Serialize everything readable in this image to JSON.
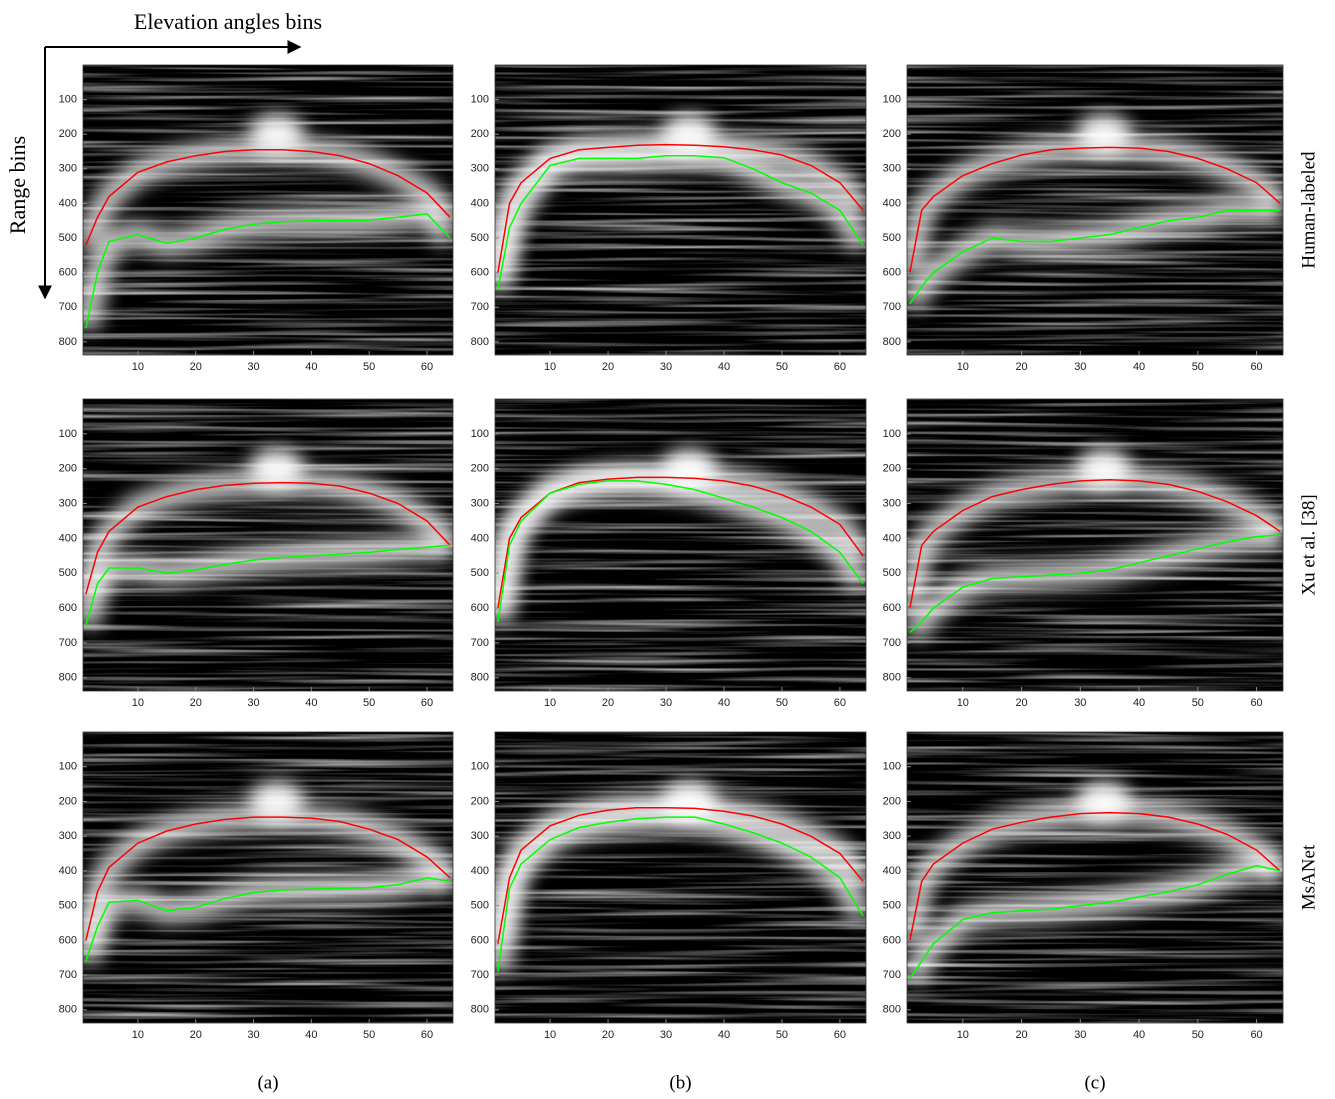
{
  "figure": {
    "x_arrow_label": "Elevation angles bins",
    "y_arrow_label": "Range bins",
    "row_labels": [
      "Human-labeled",
      "Xu et al. [38]",
      "MsANet"
    ],
    "column_labels": [
      "(a)",
      "(b)",
      "(c)"
    ]
  },
  "chart_data": [
    {
      "type": "line",
      "x": [
        1,
        3,
        5,
        10,
        15,
        20,
        25,
        30,
        35,
        40,
        45,
        50,
        55,
        60,
        64
      ],
      "xlim": [
        0.5,
        64.5
      ],
      "ylim": [
        838,
        0
      ],
      "xticks": [
        10,
        20,
        30,
        40,
        50,
        60
      ],
      "yticks": [
        100,
        200,
        300,
        400,
        500,
        600,
        700,
        800
      ],
      "series": [
        {
          "color": "#ff0000",
          "values": [
            520,
            440,
            380,
            310,
            280,
            262,
            250,
            245,
            245,
            250,
            262,
            285,
            320,
            370,
            440
          ]
        },
        {
          "color": "#00ff00",
          "values": [
            760,
            600,
            510,
            490,
            515,
            500,
            475,
            460,
            453,
            450,
            450,
            448,
            440,
            430,
            500
          ]
        }
      ]
    },
    {
      "type": "line",
      "x": [
        1,
        3,
        5,
        10,
        15,
        20,
        25,
        30,
        35,
        40,
        45,
        50,
        55,
        60,
        64
      ],
      "xlim": [
        0.5,
        64.5
      ],
      "ylim": [
        838,
        0
      ],
      "xticks": [
        10,
        20,
        30,
        40,
        50,
        60
      ],
      "yticks": [
        100,
        200,
        300,
        400,
        500,
        600,
        700,
        800
      ],
      "series": [
        {
          "color": "#ff0000",
          "values": [
            600,
            400,
            340,
            270,
            245,
            238,
            232,
            230,
            232,
            236,
            245,
            260,
            290,
            340,
            420
          ]
        },
        {
          "color": "#00ff00",
          "values": [
            650,
            470,
            400,
            290,
            270,
            270,
            270,
            262,
            262,
            268,
            300,
            340,
            370,
            420,
            520
          ]
        }
      ]
    },
    {
      "type": "line",
      "x": [
        1,
        3,
        5,
        10,
        15,
        20,
        25,
        30,
        35,
        40,
        45,
        50,
        55,
        60,
        64
      ],
      "xlim": [
        0.5,
        64.5
      ],
      "ylim": [
        838,
        0
      ],
      "xticks": [
        10,
        20,
        30,
        40,
        50,
        60
      ],
      "yticks": [
        100,
        200,
        300,
        400,
        500,
        600,
        700,
        800
      ],
      "series": [
        {
          "color": "#ff0000",
          "values": [
            600,
            420,
            380,
            320,
            285,
            260,
            245,
            240,
            238,
            240,
            250,
            270,
            300,
            340,
            400
          ]
        },
        {
          "color": "#00ff00",
          "values": [
            690,
            640,
            600,
            540,
            500,
            510,
            510,
            500,
            490,
            470,
            450,
            440,
            420,
            420,
            420
          ]
        }
      ]
    },
    {
      "type": "line",
      "x": [
        1,
        3,
        5,
        10,
        15,
        20,
        25,
        30,
        35,
        40,
        45,
        50,
        55,
        60,
        64
      ],
      "xlim": [
        0.5,
        64.5
      ],
      "ylim": [
        838,
        0
      ],
      "xticks": [
        10,
        20,
        30,
        40,
        50,
        60
      ],
      "yticks": [
        100,
        200,
        300,
        400,
        500,
        600,
        700,
        800
      ],
      "series": [
        {
          "color": "#ff0000",
          "values": [
            560,
            440,
            380,
            310,
            280,
            260,
            248,
            242,
            240,
            242,
            250,
            270,
            300,
            350,
            420
          ]
        },
        {
          "color": "#00ff00",
          "values": [
            650,
            530,
            485,
            485,
            500,
            490,
            475,
            462,
            455,
            450,
            445,
            440,
            432,
            425,
            420
          ]
        }
      ]
    },
    {
      "type": "line",
      "x": [
        1,
        3,
        5,
        10,
        15,
        20,
        25,
        30,
        35,
        40,
        45,
        50,
        55,
        60,
        64
      ],
      "xlim": [
        0.5,
        64.5
      ],
      "ylim": [
        838,
        0
      ],
      "xticks": [
        10,
        20,
        30,
        40,
        50,
        60
      ],
      "yticks": [
        100,
        200,
        300,
        400,
        500,
        600,
        700,
        800
      ],
      "series": [
        {
          "color": "#ff0000",
          "values": [
            600,
            400,
            340,
            270,
            240,
            230,
            225,
            225,
            228,
            235,
            250,
            275,
            310,
            360,
            450
          ]
        },
        {
          "color": "#00ff00",
          "values": [
            640,
            420,
            350,
            270,
            245,
            235,
            235,
            245,
            260,
            285,
            310,
            340,
            380,
            440,
            530
          ]
        }
      ]
    },
    {
      "type": "line",
      "x": [
        1,
        3,
        5,
        10,
        15,
        20,
        25,
        30,
        35,
        40,
        45,
        50,
        55,
        60,
        64
      ],
      "xlim": [
        0.5,
        64.5
      ],
      "ylim": [
        838,
        0
      ],
      "xticks": [
        10,
        20,
        30,
        40,
        50,
        60
      ],
      "yticks": [
        100,
        200,
        300,
        400,
        500,
        600,
        700,
        800
      ],
      "series": [
        {
          "color": "#ff0000",
          "values": [
            600,
            420,
            380,
            320,
            280,
            260,
            245,
            235,
            232,
            235,
            245,
            265,
            295,
            335,
            380
          ]
        },
        {
          "color": "#00ff00",
          "values": [
            670,
            640,
            600,
            540,
            515,
            510,
            505,
            500,
            490,
            470,
            450,
            430,
            410,
            395,
            390
          ]
        }
      ]
    },
    {
      "type": "line",
      "x": [
        1,
        3,
        5,
        10,
        15,
        20,
        25,
        30,
        35,
        40,
        45,
        50,
        55,
        60,
        64
      ],
      "xlim": [
        0.5,
        64.5
      ],
      "ylim": [
        838,
        0
      ],
      "xticks": [
        10,
        20,
        30,
        40,
        50,
        60
      ],
      "yticks": [
        100,
        200,
        300,
        400,
        500,
        600,
        700,
        800
      ],
      "series": [
        {
          "color": "#ff0000",
          "values": [
            600,
            460,
            390,
            320,
            285,
            265,
            252,
            245,
            245,
            248,
            258,
            280,
            310,
            360,
            420
          ]
        },
        {
          "color": "#00ff00",
          "values": [
            660,
            560,
            490,
            485,
            515,
            505,
            480,
            462,
            455,
            452,
            450,
            448,
            440,
            420,
            430
          ]
        }
      ]
    },
    {
      "type": "line",
      "x": [
        1,
        3,
        5,
        10,
        15,
        20,
        25,
        30,
        35,
        40,
        45,
        50,
        55,
        60,
        64
      ],
      "xlim": [
        0.5,
        64.5
      ],
      "ylim": [
        838,
        0
      ],
      "xticks": [
        10,
        20,
        30,
        40,
        50,
        60
      ],
      "yticks": [
        100,
        200,
        300,
        400,
        500,
        600,
        700,
        800
      ],
      "series": [
        {
          "color": "#ff0000",
          "values": [
            610,
            420,
            340,
            270,
            240,
            225,
            218,
            218,
            220,
            228,
            242,
            265,
            300,
            350,
            430
          ]
        },
        {
          "color": "#00ff00",
          "values": [
            690,
            450,
            380,
            310,
            275,
            260,
            250,
            245,
            245,
            265,
            290,
            320,
            360,
            420,
            530
          ]
        }
      ]
    },
    {
      "type": "line",
      "x": [
        1,
        3,
        5,
        10,
        15,
        20,
        25,
        30,
        35,
        40,
        45,
        50,
        55,
        60,
        64
      ],
      "xlim": [
        0.5,
        64.5
      ],
      "ylim": [
        838,
        0
      ],
      "xticks": [
        10,
        20,
        30,
        40,
        50,
        60
      ],
      "yticks": [
        100,
        200,
        300,
        400,
        500,
        600,
        700,
        800
      ],
      "series": [
        {
          "color": "#ff0000",
          "values": [
            600,
            430,
            380,
            320,
            280,
            260,
            245,
            235,
            232,
            235,
            245,
            265,
            295,
            340,
            400
          ]
        },
        {
          "color": "#00ff00",
          "values": [
            710,
            660,
            610,
            540,
            520,
            515,
            510,
            500,
            490,
            475,
            460,
            440,
            410,
            385,
            400
          ]
        }
      ]
    }
  ]
}
